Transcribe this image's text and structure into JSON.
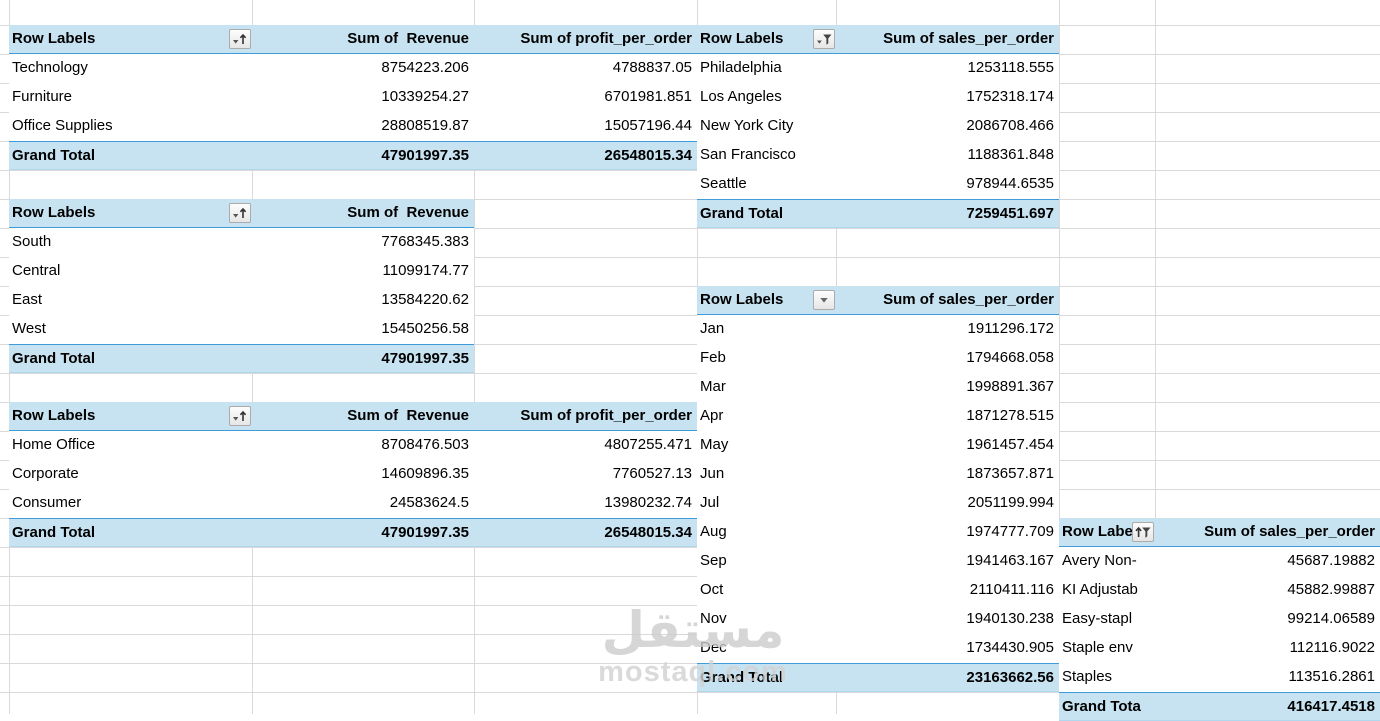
{
  "colors": {
    "pivot_header_fill": "#C7E3F2",
    "pivot_border_blue": "#3F9CD9",
    "gridline": "#D9D9D9"
  },
  "watermark": {
    "arabic": "مستقل",
    "latin": "mostaql.com"
  },
  "tables": {
    "category": {
      "header": {
        "label": "Row Labels",
        "icon": "sort-ascending-filter-icon",
        "value_columns": [
          "Sum of  Revenue",
          "Sum of profit_per_order"
        ]
      },
      "rows": [
        {
          "label": "Technology",
          "values": [
            "8754223.206",
            "4788837.05"
          ]
        },
        {
          "label": "Furniture",
          "values": [
            "10339254.27",
            "6701981.851"
          ]
        },
        {
          "label": "Office Supplies",
          "values": [
            "28808519.87",
            "15057196.44"
          ]
        }
      ],
      "total": {
        "label": "Grand Total",
        "values": [
          "47901997.35",
          "26548015.34"
        ]
      }
    },
    "region": {
      "header": {
        "label": "Row Labels",
        "icon": "sort-ascending-filter-icon",
        "value_columns": [
          "Sum of  Revenue"
        ]
      },
      "rows": [
        {
          "label": "South",
          "values": [
            "7768345.383"
          ]
        },
        {
          "label": "Central",
          "values": [
            "11099174.77"
          ]
        },
        {
          "label": "East",
          "values": [
            "13584220.62"
          ]
        },
        {
          "label": "West",
          "values": [
            "15450256.58"
          ]
        }
      ],
      "total": {
        "label": "Grand Total",
        "values": [
          "47901997.35"
        ]
      }
    },
    "segment": {
      "header": {
        "label": "Row Labels",
        "icon": "sort-ascending-filter-icon",
        "value_columns": [
          "Sum of  Revenue",
          "Sum of profit_per_order"
        ]
      },
      "rows": [
        {
          "label": "Home Office",
          "values": [
            "8708476.503",
            "4807255.471"
          ]
        },
        {
          "label": "Corporate",
          "values": [
            "14609896.35",
            "7760527.13"
          ]
        },
        {
          "label": "Consumer",
          "values": [
            "24583624.5",
            "13980232.74"
          ]
        }
      ],
      "total": {
        "label": "Grand Total",
        "values": [
          "47901997.35",
          "26548015.34"
        ]
      }
    },
    "city": {
      "header": {
        "label": "Row Labels",
        "icon": "filter-applied-icon",
        "value_columns": [
          "Sum of sales_per_order"
        ]
      },
      "rows": [
        {
          "label": "Philadelphia",
          "values": [
            "1253118.555"
          ]
        },
        {
          "label": "Los Angeles",
          "values": [
            "1752318.174"
          ]
        },
        {
          "label": "New York City",
          "values": [
            "2086708.466"
          ]
        },
        {
          "label": "San Francisco",
          "values": [
            "1188361.848"
          ]
        },
        {
          "label": "Seattle",
          "values": [
            "978944.6535"
          ]
        }
      ],
      "total": {
        "label": "Grand Total",
        "values": [
          "7259451.697"
        ]
      }
    },
    "month": {
      "header": {
        "label": "Row Labels",
        "icon": "dropdown-icon",
        "value_columns": [
          "Sum of sales_per_order"
        ]
      },
      "rows": [
        {
          "label": "Jan",
          "values": [
            "1911296.172"
          ]
        },
        {
          "label": "Feb",
          "values": [
            "1794668.058"
          ]
        },
        {
          "label": "Mar",
          "values": [
            "1998891.367"
          ]
        },
        {
          "label": "Apr",
          "values": [
            "1871278.515"
          ]
        },
        {
          "label": "May",
          "values": [
            "1961457.454"
          ]
        },
        {
          "label": "Jun",
          "values": [
            "1873657.871"
          ]
        },
        {
          "label": "Jul",
          "values": [
            "2051199.994"
          ]
        },
        {
          "label": "Aug",
          "values": [
            "1974777.709"
          ]
        },
        {
          "label": "Sep",
          "values": [
            "1941463.167"
          ]
        },
        {
          "label": "Oct",
          "values": [
            "2110411.116"
          ]
        },
        {
          "label": "Nov",
          "values": [
            "1940130.238"
          ]
        },
        {
          "label": "Dec",
          "values": [
            "1734430.905"
          ]
        }
      ],
      "total": {
        "label": "Grand Total",
        "values": [
          "23163662.56"
        ]
      }
    },
    "product": {
      "header": {
        "label": "Row Labels",
        "icon": "sorted-filtered-icon",
        "value_columns": [
          "Sum of sales_per_order"
        ]
      },
      "rows": [
        {
          "label": "Avery Non-",
          "values": [
            "45687.19882"
          ]
        },
        {
          "label": "KI Adjustab",
          "values": [
            "45882.99887"
          ]
        },
        {
          "label": "Easy-stapl",
          "values": [
            "99214.06589"
          ]
        },
        {
          "label": "Staple env",
          "values": [
            "112116.9022"
          ]
        },
        {
          "label": "Staples",
          "values": [
            "113516.2861"
          ]
        }
      ],
      "total": {
        "label": "Grand Tota",
        "values": [
          "416417.4518"
        ]
      }
    }
  }
}
